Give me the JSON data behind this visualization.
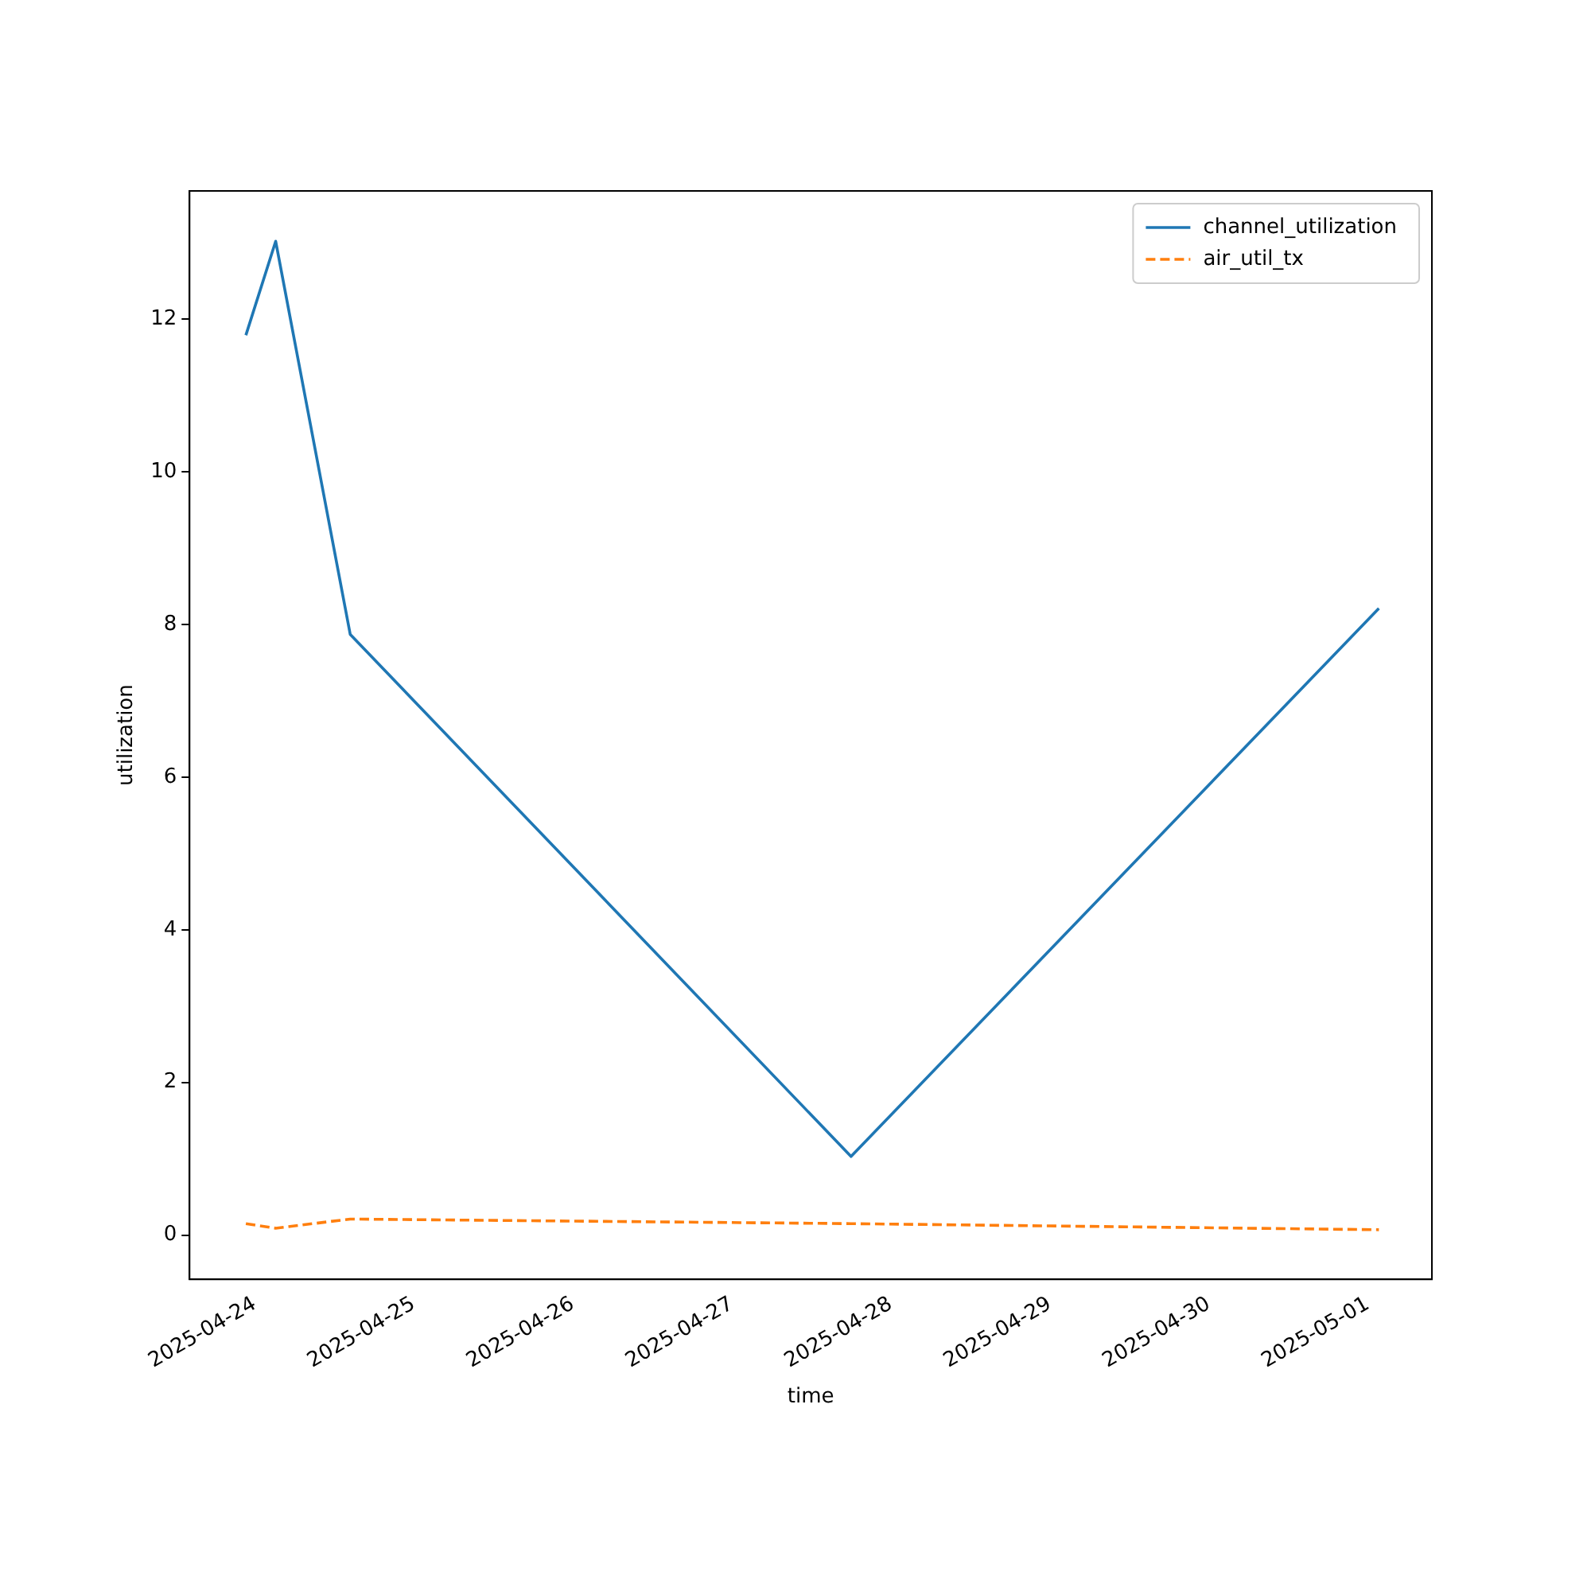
{
  "chart_data": {
    "type": "line",
    "xlabel": "time",
    "ylabel": "utilization",
    "x": [
      "2025-04-23T22:40",
      "2025-04-24T03:10",
      "2025-04-24T14:25",
      "2025-04-27T18:00",
      "2025-05-01T01:40"
    ],
    "series": [
      {
        "name": "channel_utilization",
        "color": "#1f77b4",
        "line_style": "solid",
        "values": [
          11.79,
          13.02,
          7.87,
          1.03,
          8.21
        ]
      },
      {
        "name": "air_util_tx",
        "color": "#ff7f0e",
        "line_style": "dashed",
        "values": [
          0.15,
          0.09,
          0.21,
          0.15,
          0.07
        ]
      }
    ],
    "xlim": [
      "2025-04-23T14:10",
      "2025-05-01T09:40"
    ],
    "xticks": [
      "2025-04-24",
      "2025-04-25",
      "2025-04-26",
      "2025-04-27",
      "2025-04-28",
      "2025-04-29",
      "2025-04-30",
      "2025-05-01"
    ],
    "ylim": [
      -0.58,
      13.68
    ],
    "yticks": [
      0,
      2,
      4,
      6,
      8,
      10,
      12
    ],
    "grid": false,
    "legend": "top right",
    "marker": "none"
  }
}
